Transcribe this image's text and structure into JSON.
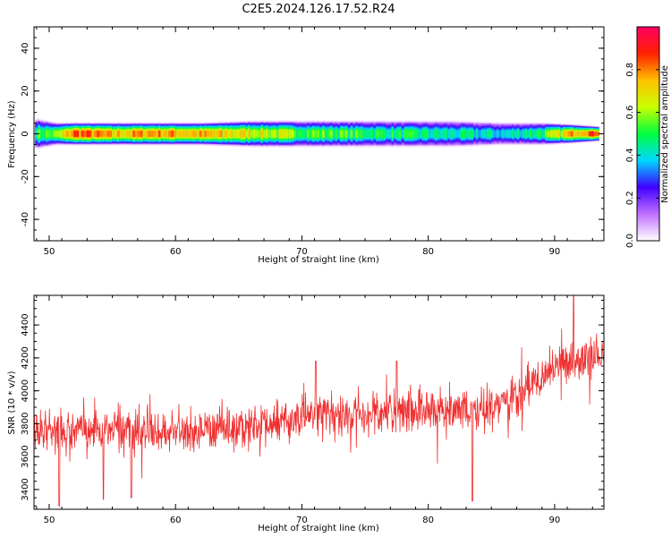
{
  "chart_data": [
    {
      "type": "heatmap",
      "title": "C2E5.2024.126.17.52.R24",
      "xlabel": "Height of straight line (km)",
      "ylabel": "Frequency (Hz)",
      "xlim": [
        48.8,
        93.9
      ],
      "ylim": [
        -50,
        50
      ],
      "x_ticks": [
        50,
        60,
        70,
        80,
        90
      ],
      "y_ticks": [
        -40,
        -20,
        0,
        20,
        40
      ],
      "band_center_hz": 0,
      "band_profile": [
        {
          "x": 49.0,
          "halfwidth_hz": 4,
          "peak": 0.55
        },
        {
          "x": 50.5,
          "halfwidth_hz": 3,
          "peak": 0.6
        },
        {
          "x": 52,
          "halfwidth_hz": 3,
          "peak": 0.92
        },
        {
          "x": 55,
          "halfwidth_hz": 3,
          "peak": 0.78
        },
        {
          "x": 58,
          "halfwidth_hz": 3,
          "peak": 0.85
        },
        {
          "x": 62,
          "halfwidth_hz": 3,
          "peak": 0.8
        },
        {
          "x": 66,
          "halfwidth_hz": 3.5,
          "peak": 0.72
        },
        {
          "x": 70,
          "halfwidth_hz": 3.5,
          "peak": 0.6
        },
        {
          "x": 74,
          "halfwidth_hz": 3.5,
          "peak": 0.55
        },
        {
          "x": 78,
          "halfwidth_hz": 3.5,
          "peak": 0.5
        },
        {
          "x": 82,
          "halfwidth_hz": 3.5,
          "peak": 0.45
        },
        {
          "x": 86,
          "halfwidth_hz": 3,
          "peak": 0.42
        },
        {
          "x": 89,
          "halfwidth_hz": 3,
          "peak": 0.55
        },
        {
          "x": 91.5,
          "halfwidth_hz": 2.5,
          "peak": 0.85
        },
        {
          "x": 93.3,
          "halfwidth_hz": 2,
          "peak": 0.95
        }
      ],
      "colorbar": {
        "label": "Normalized spectral amplitude",
        "ticks": [
          "0.0",
          "0.2",
          "0.4",
          "0.6",
          "0.8"
        ],
        "range": [
          0,
          1
        ],
        "colors": [
          "#ffffff",
          "#c070ff",
          "#4000ff",
          "#00d8ff",
          "#00ff40",
          "#c8ff00",
          "#ffc000",
          "#ff2000",
          "#ff0060"
        ]
      }
    },
    {
      "type": "line",
      "xlabel": "Height of straight line (km)",
      "ylabel": "SNR (10 * v/v)",
      "xlim": [
        48.8,
        93.9
      ],
      "ylim": [
        3280,
        4580
      ],
      "x_ticks": [
        50,
        60,
        70,
        80,
        90
      ],
      "y_ticks": [
        3400,
        3600,
        3800,
        4000,
        4200,
        4400
      ],
      "color": "#f03030",
      "series": [
        {
          "trend": [
            {
              "x": 49,
              "snr": 3760
            },
            {
              "x": 55,
              "snr": 3770
            },
            {
              "x": 60,
              "snr": 3760
            },
            {
              "x": 65,
              "snr": 3770
            },
            {
              "x": 70,
              "snr": 3840
            },
            {
              "x": 75,
              "snr": 3870
            },
            {
              "x": 80,
              "snr": 3880
            },
            {
              "x": 84,
              "snr": 3870
            },
            {
              "x": 87,
              "snr": 3970
            },
            {
              "x": 90,
              "snr": 4150
            },
            {
              "x": 93.9,
              "snr": 4240
            }
          ],
          "noise_amplitude": 95,
          "dips": [
            {
              "x": 50.8,
              "snr": 3300
            },
            {
              "x": 54.3,
              "snr": 3340
            },
            {
              "x": 56.5,
              "snr": 3350
            },
            {
              "x": 83.5,
              "snr": 3330
            }
          ],
          "peaks": [
            {
              "x": 91.5,
              "snr": 4580
            },
            {
              "x": 77.5,
              "snr": 4180
            },
            {
              "x": 71.1,
              "snr": 4180
            }
          ]
        }
      ]
    }
  ]
}
